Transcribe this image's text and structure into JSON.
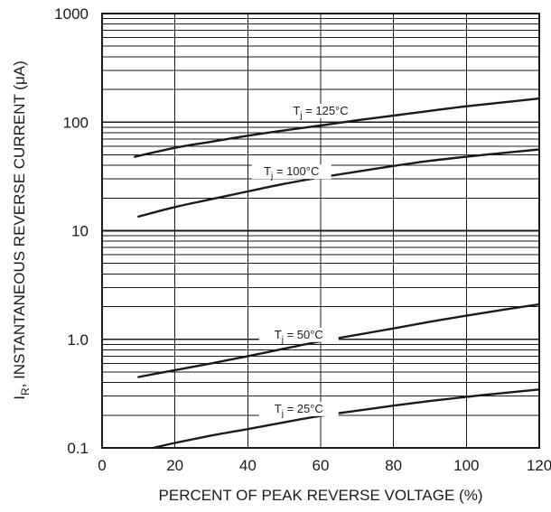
{
  "chart_data": {
    "type": "line",
    "title": "",
    "xlabel": "PERCENT OF PEAK REVERSE VOLTAGE (%)",
    "ylabel_main": "I",
    "ylabel_sub": "R",
    "ylabel_rest": ", INSTANTANEOUS REVERSE CURRENT (μA)",
    "xlim": [
      0,
      120
    ],
    "ylim": [
      0.1,
      1000
    ],
    "y_scale": "log",
    "grid": true,
    "x_ticks": [
      "0",
      "20",
      "40",
      "60",
      "80",
      "100",
      "120"
    ],
    "y_ticks": [
      "0.1",
      "1.0",
      "10",
      "100",
      "1000"
    ],
    "series": [
      {
        "label_main": "T",
        "label_sub": "j",
        "label_rest": " = 125°C",
        "x": [
          9,
          20,
          30,
          40,
          50,
          60,
          70,
          80,
          90,
          100,
          110,
          120
        ],
        "y": [
          48,
          58,
          66,
          75,
          84,
          93,
          104,
          115,
          127,
          140,
          152,
          165
        ]
      },
      {
        "label_main": "T",
        "label_sub": "j",
        "label_rest": " = 100°C",
        "x": [
          10,
          20,
          30,
          40,
          50,
          60,
          70,
          80,
          90,
          100,
          110,
          120
        ],
        "y": [
          13.5,
          16.5,
          19.5,
          23,
          27,
          31,
          35,
          39.5,
          44,
          48,
          52,
          56
        ]
      },
      {
        "label_main": "T",
        "label_sub": "j",
        "label_rest": " = 50°C",
        "x": [
          10,
          20,
          30,
          40,
          50,
          60,
          70,
          80,
          90,
          100,
          110,
          120
        ],
        "y": [
          0.45,
          0.52,
          0.6,
          0.7,
          0.82,
          0.96,
          1.1,
          1.26,
          1.45,
          1.65,
          1.87,
          2.1
        ]
      },
      {
        "label_main": "T",
        "label_sub": "j",
        "label_rest": " = 25°C",
        "x": [
          14,
          20,
          30,
          40,
          50,
          60,
          70,
          80,
          90,
          100,
          110,
          120
        ],
        "y": [
          0.1,
          0.111,
          0.13,
          0.149,
          0.172,
          0.197,
          0.22,
          0.245,
          0.27,
          0.295,
          0.32,
          0.345
        ]
      }
    ]
  }
}
